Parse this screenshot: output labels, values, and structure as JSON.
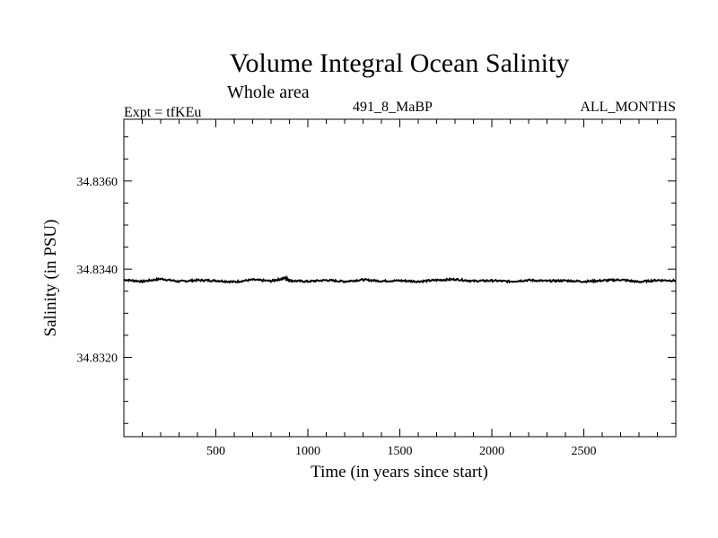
{
  "chart_data": {
    "type": "line",
    "title": "Volume Integral Ocean Salinity",
    "subtitle": "Whole area",
    "annotations": {
      "left": "Expt = tfKEu",
      "center": "491_8_MaBP",
      "right": "ALL_MONTHS"
    },
    "xlabel": "Time (in years since start)",
    "ylabel": "Salinity (in PSU)",
    "xlim": [
      0,
      3000
    ],
    "ylim": [
      34.8302,
      34.8374
    ],
    "x_ticks": [
      500,
      1000,
      1500,
      2000,
      2500
    ],
    "x_tick_labels": [
      "500",
      "1000",
      "1500",
      "2000",
      "2500"
    ],
    "y_ticks": [
      34.832,
      34.834,
      34.836
    ],
    "y_tick_labels": [
      "34.8320",
      "34.8340",
      "34.8360"
    ],
    "grid": false,
    "legend": "none",
    "line_color": "#000000",
    "series": [
      {
        "x": [
          0,
          100,
          200,
          300,
          400,
          500,
          600,
          700,
          800,
          880,
          900,
          1000,
          1100,
          1200,
          1300,
          1400,
          1500,
          1600,
          1700,
          1800,
          1900,
          2000,
          2100,
          2200,
          2300,
          2400,
          2500,
          2600,
          2700,
          2800,
          2900,
          3000
        ],
        "values": [
          34.83376,
          34.83372,
          34.83378,
          34.83372,
          34.83375,
          34.83374,
          34.83371,
          34.83376,
          34.83373,
          34.8338,
          34.83374,
          34.83372,
          34.83375,
          34.83372,
          34.83376,
          34.83373,
          34.83374,
          34.83372,
          34.83375,
          34.83377,
          34.83373,
          34.83374,
          34.83372,
          34.83375,
          34.83373,
          34.83374,
          34.83372,
          34.83374,
          34.83376,
          34.83371,
          34.83375,
          34.83374
        ]
      }
    ]
  }
}
